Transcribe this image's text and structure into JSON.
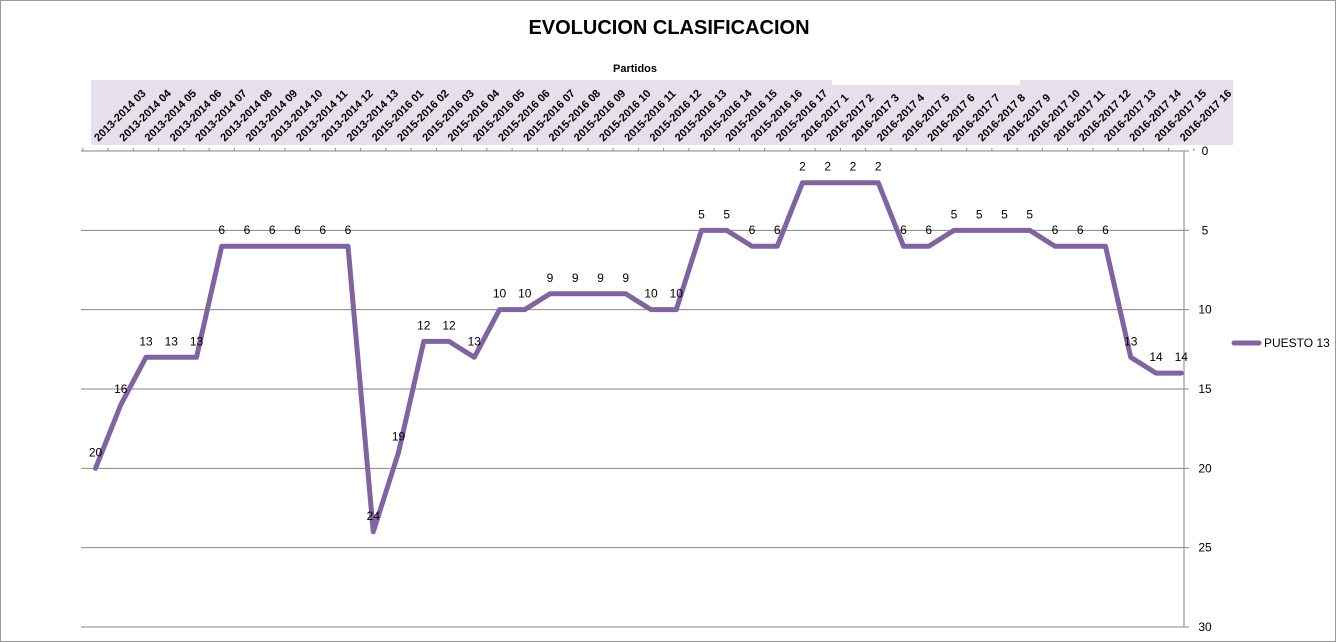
{
  "chart_data": {
    "type": "line",
    "title": "EVOLUCION CLASIFICACION",
    "xlabel": "Partidos",
    "ylabel": "",
    "ylim": [
      0,
      30
    ],
    "y_inverted": true,
    "y_ticks": [
      0,
      5,
      10,
      15,
      20,
      25,
      30
    ],
    "x_axis_position": "top",
    "y_axis_position": "right",
    "grid": true,
    "legend_position": "right",
    "categories": [
      "2013-2014 03",
      "2013-2014 04",
      "2013-2014 05",
      "2013-2014 06",
      "2013-2014 07",
      "2013-2014 08",
      "2013-2014 09",
      "2013-2014 10",
      "2013-2014 11",
      "2013-2014 12",
      "2013-2014 13",
      "2015-2016 01",
      "2015-2016 02",
      "2015-2016 03",
      "2015-2016 04",
      "2015-2016 05",
      "2015-2016 06",
      "2015-2016 07",
      "2015-2016 08",
      "2015-2016 09",
      "2015-2016 10",
      "2015-2016 11",
      "2015-2016 12",
      "2015-2016 13",
      "2015-2016 14",
      "2015-2016 15",
      "2015-2016 16",
      "2015-2016 17",
      "2016-2017 1",
      "2016-2017 2",
      "2016-2017 3",
      "2016-2017 4",
      "2016-2017 5",
      "2016-2017 6",
      "2016-2017 7",
      "2016-2017 8",
      "2016-2017 9",
      "2016-2017 10",
      "2016-2017 11",
      "2016-2017 12",
      "2016-2017 13",
      "2016-2017 14",
      "2016-2017 15",
      "2016-2017 16"
    ],
    "series": [
      {
        "name": "PUESTO 13",
        "color": "#8064a2",
        "values": [
          20,
          16,
          13,
          13,
          13,
          6,
          6,
          6,
          6,
          6,
          6,
          24,
          19,
          12,
          12,
          13,
          10,
          10,
          9,
          9,
          9,
          9,
          10,
          10,
          5,
          5,
          6,
          6,
          2,
          2,
          2,
          2,
          6,
          6,
          5,
          5,
          5,
          5,
          6,
          6,
          6,
          13,
          14,
          14
        ]
      }
    ],
    "colors": {
      "line": "#8064a2",
      "category_band": "#e6e0ec",
      "grid": "#868686"
    }
  }
}
